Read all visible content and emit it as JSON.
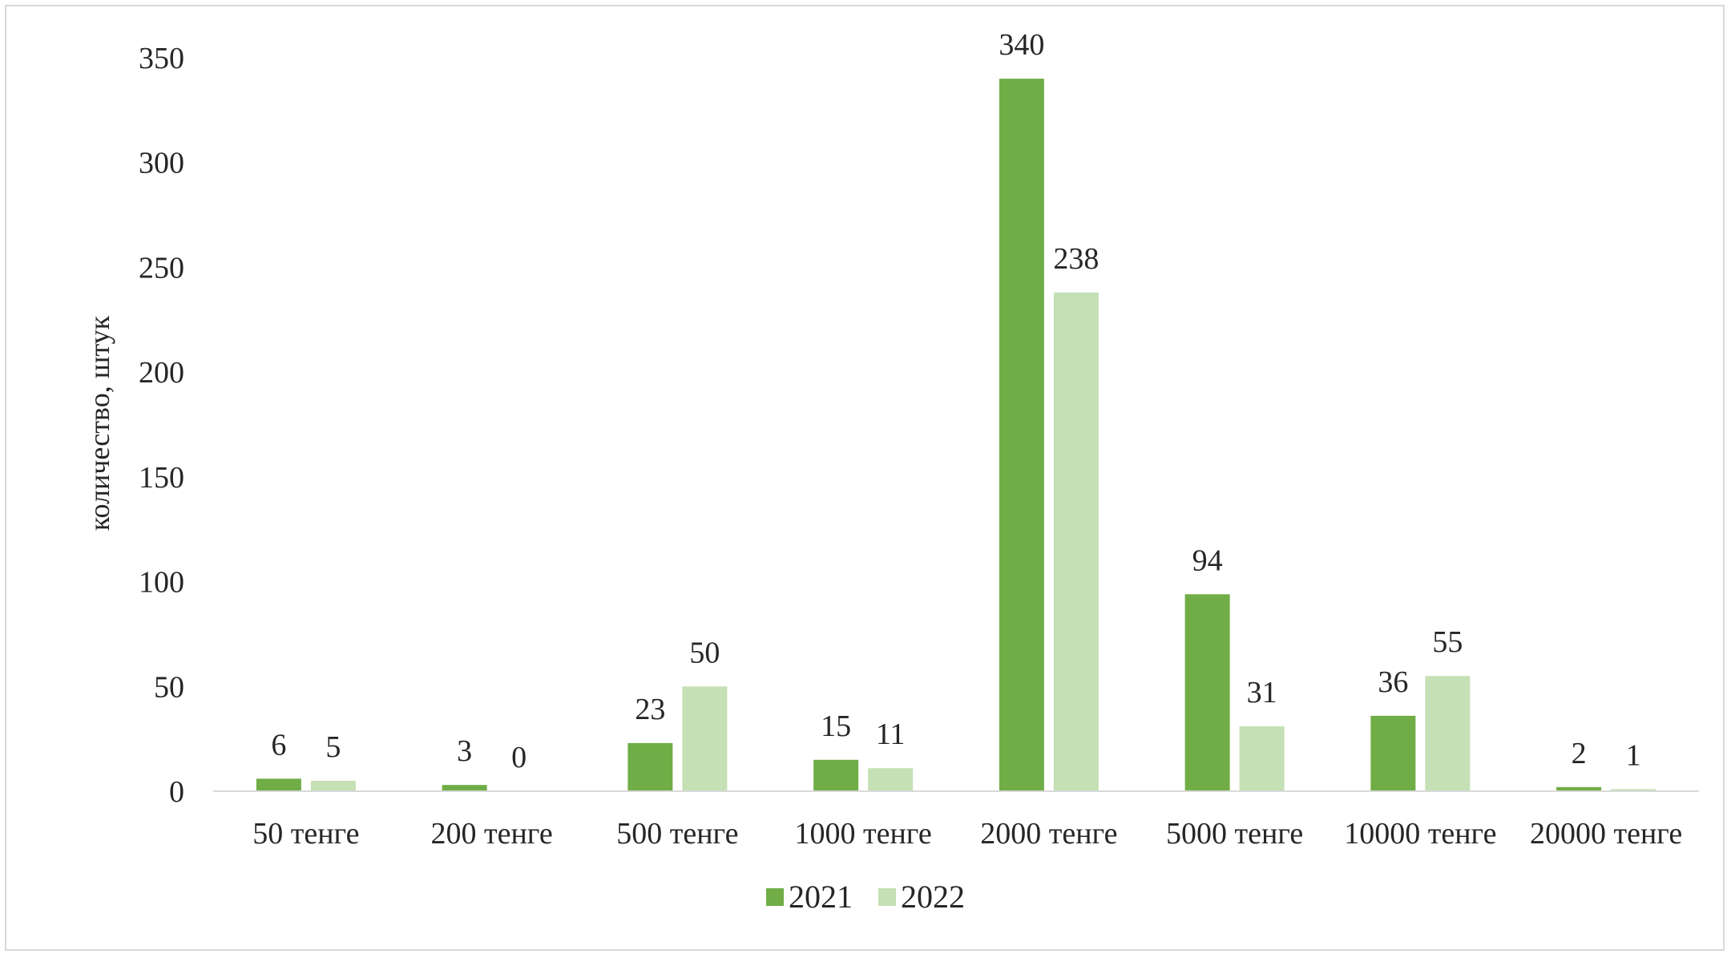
{
  "chart_data": {
    "type": "bar",
    "title": "",
    "xlabel": "",
    "ylabel": "количество, штук",
    "ylim": [
      0,
      350
    ],
    "yticks": [
      0,
      50,
      100,
      150,
      200,
      250,
      300,
      350
    ],
    "grid": false,
    "legend_position": "bottom",
    "categories": [
      "50 тенге",
      "200 тенге",
      "500 тенге",
      "1000 тенге",
      "2000 тенге",
      "5000 тенге",
      "10000 тенге",
      "20000 тенге"
    ],
    "series": [
      {
        "name": "2021",
        "color": "#70ad47",
        "values": [
          6,
          3,
          23,
          15,
          340,
          94,
          36,
          2
        ]
      },
      {
        "name": "2022",
        "color": "#c5e0b4",
        "values": [
          5,
          0,
          50,
          11,
          238,
          31,
          55,
          1
        ]
      }
    ]
  }
}
